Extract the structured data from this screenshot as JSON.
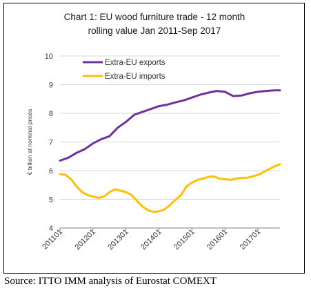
{
  "chart_data": {
    "type": "line",
    "title_line1": "Chart 1: EU wood furniture trade - 12 month",
    "title_line2": "rolling value Jan 2011-Sep 2017",
    "ylabel": "€ billion at nominal prices",
    "xlabel": "",
    "ylim": [
      4,
      10
    ],
    "yticks": [
      4,
      5,
      6,
      7,
      8,
      9,
      10
    ],
    "x_ticks": [
      "201101",
      "201201",
      "201301",
      "201401",
      "201501",
      "201601",
      "201701"
    ],
    "x_start": "201101",
    "x_end": "201709",
    "grid": true,
    "legend_position": "top-left",
    "series": [
      {
        "name": "Extra-EU exports",
        "color": "#7030a0",
        "points": [
          [
            "201101",
            6.35
          ],
          [
            "201104",
            6.45
          ],
          [
            "201107",
            6.62
          ],
          [
            "201110",
            6.75
          ],
          [
            "201201",
            6.95
          ],
          [
            "201204",
            7.1
          ],
          [
            "201207",
            7.2
          ],
          [
            "201210",
            7.5
          ],
          [
            "201301",
            7.7
          ],
          [
            "201304",
            7.95
          ],
          [
            "201307",
            8.05
          ],
          [
            "201310",
            8.15
          ],
          [
            "201401",
            8.25
          ],
          [
            "201404",
            8.3
          ],
          [
            "201407",
            8.38
          ],
          [
            "201410",
            8.45
          ],
          [
            "201501",
            8.55
          ],
          [
            "201504",
            8.65
          ],
          [
            "201507",
            8.72
          ],
          [
            "201510",
            8.78
          ],
          [
            "201601",
            8.75
          ],
          [
            "201604",
            8.6
          ],
          [
            "201607",
            8.62
          ],
          [
            "201610",
            8.7
          ],
          [
            "201701",
            8.75
          ],
          [
            "201704",
            8.78
          ],
          [
            "201707",
            8.8
          ],
          [
            "201709",
            8.8
          ]
        ]
      },
      {
        "name": "Extra-EU imports",
        "color": "#ffc000",
        "points": [
          [
            "201101",
            5.88
          ],
          [
            "201103",
            5.85
          ],
          [
            "201105",
            5.7
          ],
          [
            "201107",
            5.45
          ],
          [
            "201109",
            5.25
          ],
          [
            "201111",
            5.15
          ],
          [
            "201201",
            5.1
          ],
          [
            "201203",
            5.05
          ],
          [
            "201205",
            5.1
          ],
          [
            "201207",
            5.25
          ],
          [
            "201209",
            5.35
          ],
          [
            "201211",
            5.3
          ],
          [
            "201301",
            5.25
          ],
          [
            "201303",
            5.15
          ],
          [
            "201305",
            4.95
          ],
          [
            "201307",
            4.75
          ],
          [
            "201309",
            4.62
          ],
          [
            "201311",
            4.56
          ],
          [
            "201401",
            4.58
          ],
          [
            "201403",
            4.65
          ],
          [
            "201405",
            4.8
          ],
          [
            "201407",
            4.98
          ],
          [
            "201409",
            5.15
          ],
          [
            "201411",
            5.45
          ],
          [
            "201501",
            5.58
          ],
          [
            "201503",
            5.68
          ],
          [
            "201505",
            5.72
          ],
          [
            "201507",
            5.78
          ],
          [
            "201509",
            5.8
          ],
          [
            "201511",
            5.72
          ],
          [
            "201601",
            5.7
          ],
          [
            "201603",
            5.68
          ],
          [
            "201605",
            5.72
          ],
          [
            "201607",
            5.75
          ],
          [
            "201609",
            5.75
          ],
          [
            "201611",
            5.8
          ],
          [
            "201701",
            5.85
          ],
          [
            "201703",
            5.95
          ],
          [
            "201705",
            6.05
          ],
          [
            "201707",
            6.15
          ],
          [
            "201709",
            6.22
          ]
        ]
      }
    ]
  },
  "source_note": "Source: ITTO IMM analysis of Eurostat COMEXT"
}
